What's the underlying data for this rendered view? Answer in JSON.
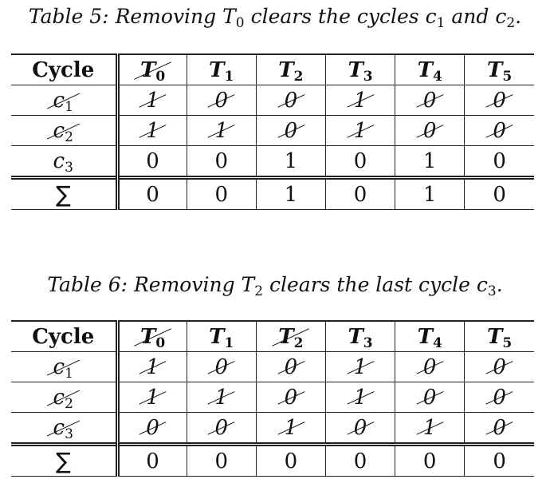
{
  "tables": [
    {
      "caption_label": "Table 5:",
      "caption_text": "Removing T",
      "caption_sub": "0",
      "caption_tail": " clears the cycles c",
      "caption_sub2": "1",
      "caption_mid": " and c",
      "caption_sub3": "2",
      "caption_end": ".",
      "header_label": "Cycle",
      "columns": [
        {
          "var": "T",
          "sub": "0",
          "struck": true
        },
        {
          "var": "T",
          "sub": "1",
          "struck": false
        },
        {
          "var": "T",
          "sub": "2",
          "struck": false
        },
        {
          "var": "T",
          "sub": "3",
          "struck": false
        },
        {
          "var": "T",
          "sub": "4",
          "struck": false
        },
        {
          "var": "T",
          "sub": "5",
          "struck": false
        }
      ],
      "rows": [
        {
          "var": "c",
          "sub": "1",
          "struck": true,
          "values": [
            "1",
            "0",
            "0",
            "1",
            "0",
            "0"
          ],
          "struck_cells": [
            true,
            true,
            true,
            true,
            true,
            true
          ]
        },
        {
          "var": "c",
          "sub": "2",
          "struck": true,
          "values": [
            "1",
            "1",
            "0",
            "1",
            "0",
            "0"
          ],
          "struck_cells": [
            true,
            true,
            true,
            true,
            true,
            true
          ]
        },
        {
          "var": "c",
          "sub": "3",
          "struck": false,
          "values": [
            "0",
            "0",
            "1",
            "0",
            "1",
            "0"
          ],
          "struck_cells": [
            false,
            false,
            false,
            false,
            false,
            false
          ]
        }
      ],
      "sum_label": "∑",
      "sums": [
        "0",
        "0",
        "1",
        "0",
        "1",
        "0"
      ]
    },
    {
      "caption_label": "Table 6:",
      "caption_text": "Removing T",
      "caption_sub": "2",
      "caption_tail": " clears the last cycle c",
      "caption_sub2": "3",
      "caption_mid": "",
      "caption_sub3": "",
      "caption_end": ".",
      "header_label": "Cycle",
      "columns": [
        {
          "var": "T",
          "sub": "0",
          "struck": true
        },
        {
          "var": "T",
          "sub": "1",
          "struck": false
        },
        {
          "var": "T",
          "sub": "2",
          "struck": true
        },
        {
          "var": "T",
          "sub": "3",
          "struck": false
        },
        {
          "var": "T",
          "sub": "4",
          "struck": false
        },
        {
          "var": "T",
          "sub": "5",
          "struck": false
        }
      ],
      "rows": [
        {
          "var": "c",
          "sub": "1",
          "struck": true,
          "values": [
            "1",
            "0",
            "0",
            "1",
            "0",
            "0"
          ],
          "struck_cells": [
            true,
            true,
            true,
            true,
            true,
            true
          ]
        },
        {
          "var": "c",
          "sub": "2",
          "struck": true,
          "values": [
            "1",
            "1",
            "0",
            "1",
            "0",
            "0"
          ],
          "struck_cells": [
            true,
            true,
            true,
            true,
            true,
            true
          ]
        },
        {
          "var": "c",
          "sub": "3",
          "struck": true,
          "values": [
            "0",
            "0",
            "1",
            "0",
            "1",
            "0"
          ],
          "struck_cells": [
            true,
            true,
            true,
            true,
            true,
            true
          ]
        }
      ],
      "sum_label": "∑",
      "sums": [
        "0",
        "0",
        "0",
        "0",
        "0",
        "0"
      ]
    }
  ]
}
